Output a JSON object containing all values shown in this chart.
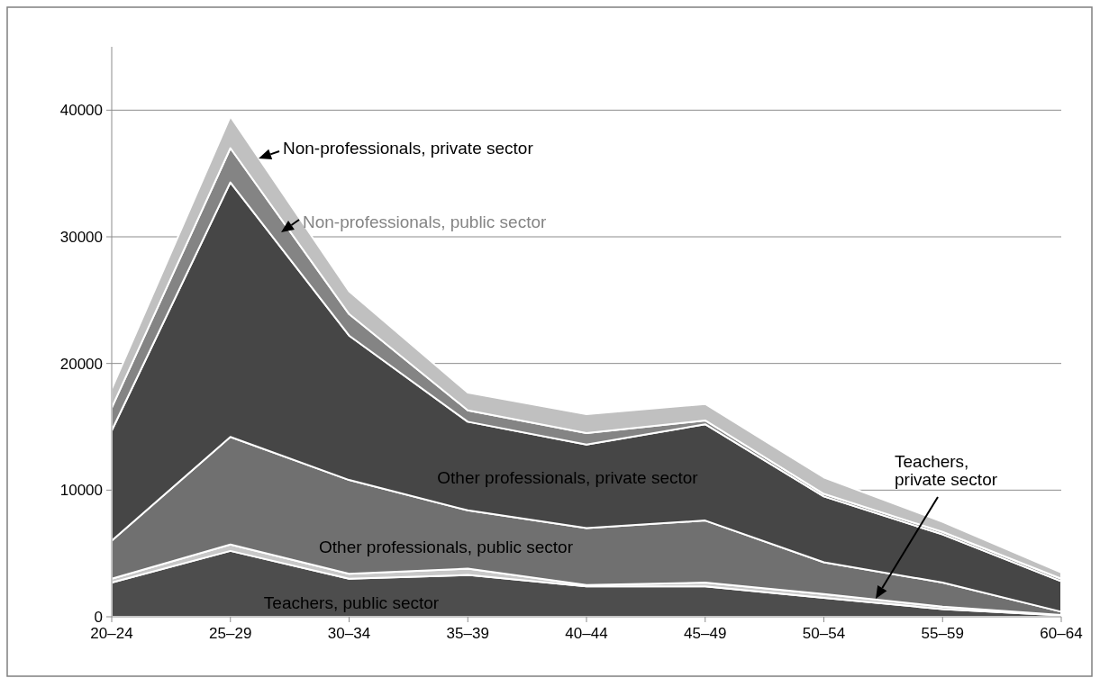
{
  "chart_data": {
    "type": "area",
    "stacked": true,
    "categories": [
      "20–24",
      "25–29",
      "30–34",
      "35–39",
      "40–44",
      "45–49",
      "50–54",
      "55–59",
      "60–64"
    ],
    "series": [
      {
        "name": "Teachers, public sector",
        "color": "#4d4d4d",
        "values": [
          2700,
          5200,
          3000,
          3300,
          2400,
          2400,
          1500,
          600,
          100
        ]
      },
      {
        "name": "Teachers, private sector",
        "color": "#c8c8c8",
        "values": [
          300,
          500,
          400,
          500,
          100,
          300,
          300,
          200,
          50
        ]
      },
      {
        "name": "Other professionals, public sector",
        "color": "#707070",
        "values": [
          3000,
          8500,
          7400,
          4600,
          4500,
          4900,
          2500,
          1900,
          250
        ]
      },
      {
        "name": "Other professionals, private sector",
        "color": "#464646",
        "values": [
          8700,
          20100,
          11400,
          7000,
          6600,
          7600,
          5200,
          3800,
          2400
        ]
      },
      {
        "name": "Non-professionals, public sector",
        "color": "#848484",
        "values": [
          1800,
          2700,
          1700,
          900,
          900,
          300,
          200,
          200,
          200
        ]
      },
      {
        "name": "Non-professionals, private sector",
        "color": "#c0c0c0",
        "values": [
          1500,
          2500,
          1800,
          1400,
          1500,
          1300,
          1300,
          800,
          500
        ]
      }
    ],
    "ylim": [
      0,
      45000
    ],
    "yticks": [
      0,
      10000,
      20000,
      30000,
      40000
    ],
    "grid": "y",
    "legend": false
  }
}
